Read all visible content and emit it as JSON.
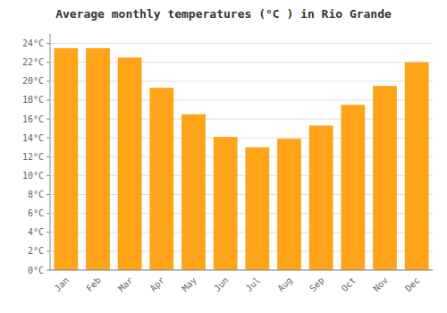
{
  "chart_data": {
    "type": "bar",
    "title": "Average monthly temperatures (°C ) in Rio Grande",
    "categories": [
      "Jan",
      "Feb",
      "Mar",
      "Apr",
      "May",
      "Jun",
      "Jul",
      "Aug",
      "Sep",
      "Oct",
      "Nov",
      "Dec"
    ],
    "values": [
      23.5,
      23.5,
      22.5,
      19.3,
      16.5,
      14.1,
      13.0,
      13.9,
      15.3,
      17.5,
      19.5,
      22.0
    ],
    "color": "#FF9900",
    "ylim": [
      0,
      25
    ],
    "yticks": [
      {
        "value": 0,
        "label": "0°C"
      },
      {
        "value": 2,
        "label": "2°C"
      },
      {
        "value": 4,
        "label": "4°C"
      },
      {
        "value": 6,
        "label": "6°C"
      },
      {
        "value": 8,
        "label": "8°C"
      },
      {
        "value": 10,
        "label": "10°C"
      },
      {
        "value": 12,
        "label": "12°C"
      },
      {
        "value": 14,
        "label": "14°C"
      },
      {
        "value": 16,
        "label": "16°C"
      },
      {
        "value": 18,
        "label": "18°C"
      },
      {
        "value": 20,
        "label": "20°C"
      },
      {
        "value": 22,
        "label": "22°C"
      },
      {
        "value": 24,
        "label": "24°C"
      }
    ],
    "grid": true
  }
}
